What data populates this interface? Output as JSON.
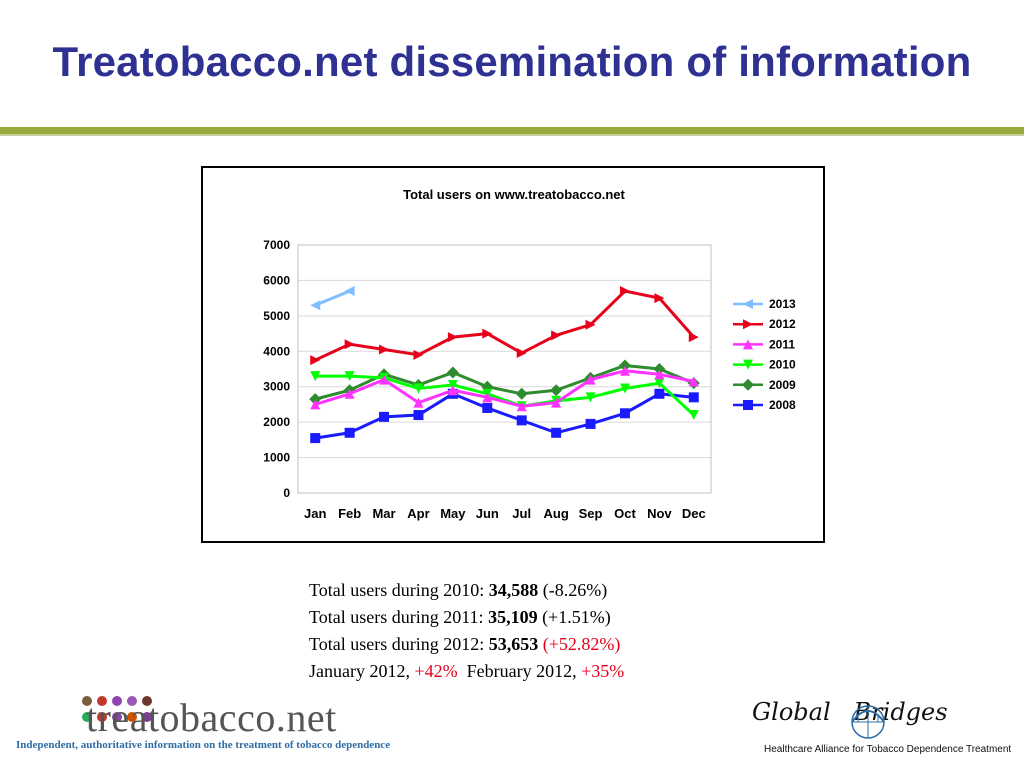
{
  "slide": {
    "title": "Treatobacco.net dissemination of information"
  },
  "chart_data": {
    "type": "line",
    "title": "Total users on www.treatobacco.net",
    "categories": [
      "Jan",
      "Feb",
      "Mar",
      "Apr",
      "May",
      "Jun",
      "Jul",
      "Aug",
      "Sep",
      "Oct",
      "Nov",
      "Dec"
    ],
    "ylim": [
      0,
      7000
    ],
    "yticks": [
      0,
      1000,
      2000,
      3000,
      4000,
      5000,
      6000,
      7000
    ],
    "grid": true,
    "legend_position": "right",
    "series": [
      {
        "name": "2013",
        "color": "#7fbfff",
        "marker": "triangle-left",
        "values": [
          5300,
          5700,
          null,
          null,
          null,
          null,
          null,
          null,
          null,
          null,
          null,
          null
        ]
      },
      {
        "name": "2012",
        "color": "#e8001a",
        "marker": "triangle-right",
        "values": [
          3750,
          4200,
          4050,
          3900,
          4400,
          4500,
          3950,
          4450,
          4750,
          5700,
          5500,
          4400
        ]
      },
      {
        "name": "2011",
        "color": "#ff33ff",
        "marker": "triangle-up",
        "values": [
          2500,
          2800,
          3200,
          2550,
          2900,
          2700,
          2450,
          2550,
          3200,
          3450,
          3350,
          3150
        ]
      },
      {
        "name": "2010",
        "color": "#00ff00",
        "marker": "triangle-down",
        "values": [
          3300,
          3300,
          3250,
          2950,
          3050,
          2800,
          2450,
          2600,
          2700,
          2950,
          3100,
          2200
        ]
      },
      {
        "name": "2009",
        "color": "#2e8b2e",
        "marker": "diamond",
        "values": [
          2650,
          2900,
          3350,
          3050,
          3400,
          3000,
          2800,
          2900,
          3250,
          3600,
          3500,
          3100
        ]
      },
      {
        "name": "2008",
        "color": "#1a1aff",
        "marker": "square",
        "values": [
          1550,
          1700,
          2150,
          2200,
          2800,
          2400,
          2050,
          1700,
          1950,
          2250,
          2800,
          2700
        ]
      }
    ]
  },
  "stats": {
    "l1_prefix": "Total users during 2010: ",
    "l1_value": "34,588",
    "l1_change": " (-8.26%)",
    "l2_prefix": "Total users during 2011: ",
    "l2_value": "35,109",
    "l2_change": " (+1.51%)",
    "l3_prefix": "Total users during 2012: ",
    "l3_value": "53,653",
    "l3_change": " (+52.82%)",
    "l4_a": "January 2012, ",
    "l4_b": "+42%",
    "l4_c": "  February 2012, ",
    "l4_d": "+35%"
  },
  "logo_left": {
    "word": "treatobacco.net",
    "tagline": "Independent, authoritative information on the treatment of tobacco dependence",
    "dot_colors": [
      "#7a5c3a",
      "#c0392b",
      "#8e44ad",
      "#9b59b6",
      "#6b3a2a",
      "#27ae60",
      "#c0392b",
      "#8e44ad",
      "#d35400",
      "#7d3c98"
    ]
  },
  "logo_right": {
    "word": "Global   Bridges",
    "tagline": "Healthcare Alliance for Tobacco Dependence Treatment"
  }
}
